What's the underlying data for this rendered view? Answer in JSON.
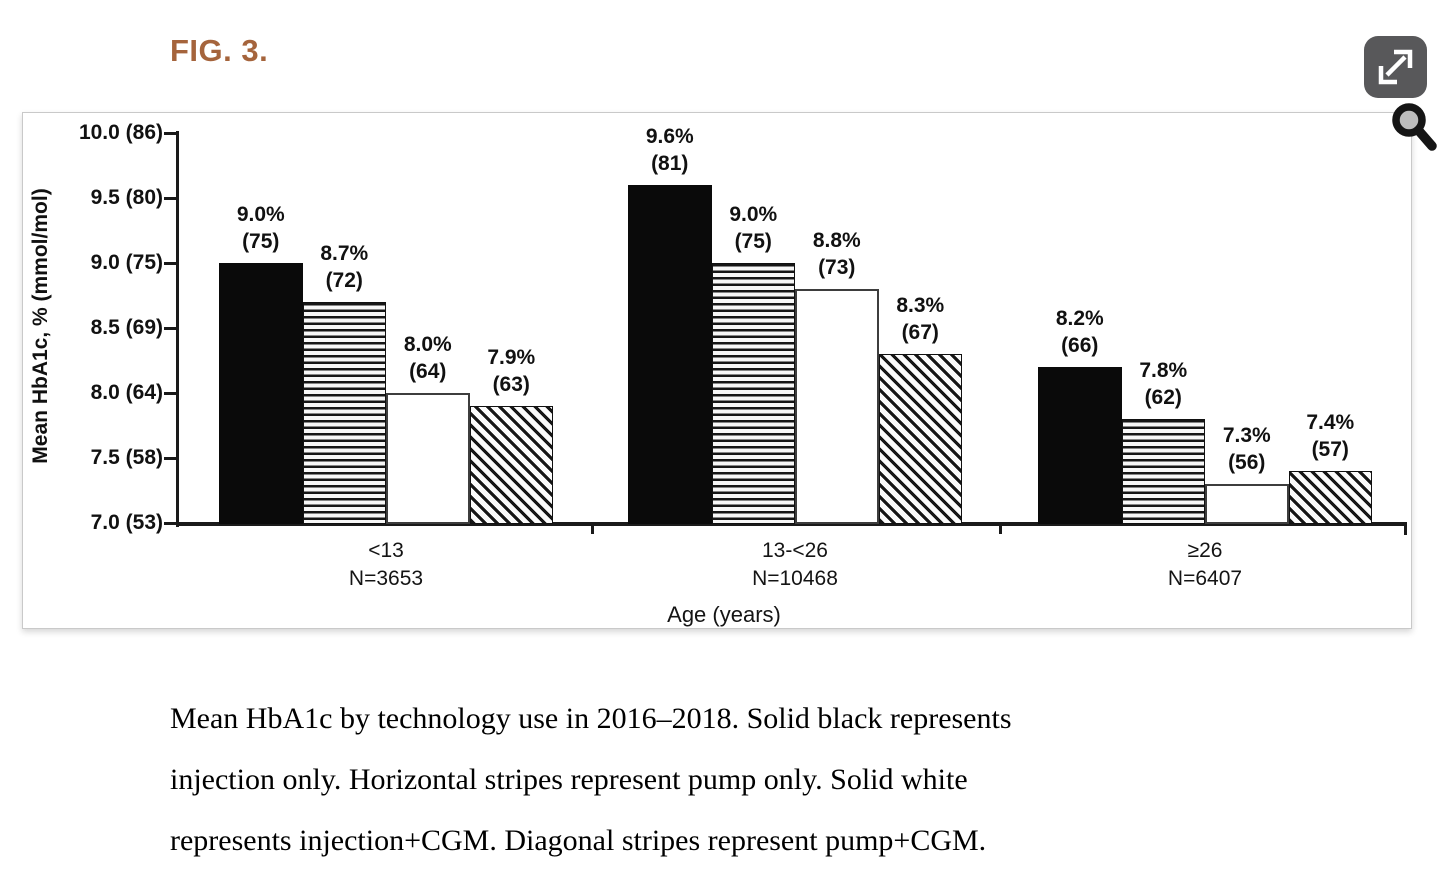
{
  "figure": {
    "label": "FIG. 3."
  },
  "controls": {
    "expand_icon": "expand-diagonal-arrows",
    "zoom_icon": "magnifying-glass"
  },
  "colors": {
    "figure_label": "#a5643c",
    "expand_button_bg": "#58585a",
    "bar_black": "#0a0a0a",
    "axis": "#1a1a1a"
  },
  "chart_data": {
    "type": "bar",
    "title": "",
    "xlabel": "Age (years)",
    "ylabel": "Mean HbA1c, % (mmol/mol)",
    "ylim": [
      7.0,
      10.0
    ],
    "grid": false,
    "legend": "described in caption (fill patterns)",
    "yticks": [
      {
        "value": 10.0,
        "label": "10.0 (86)"
      },
      {
        "value": 9.5,
        "label": "9.5 (80)"
      },
      {
        "value": 9.0,
        "label": "9.0 (75)"
      },
      {
        "value": 8.5,
        "label": "8.5 (69)"
      },
      {
        "value": 8.0,
        "label": "8.0 (64)"
      },
      {
        "value": 7.5,
        "label": "7.5 (58)"
      },
      {
        "value": 7.0,
        "label": "7.0 (53)"
      }
    ],
    "series": [
      {
        "name": "injection only",
        "pattern": "solid-black"
      },
      {
        "name": "pump only",
        "pattern": "horizontal-stripes"
      },
      {
        "name": "injection+CGM",
        "pattern": "solid-white"
      },
      {
        "name": "pump+CGM",
        "pattern": "diagonal-stripes"
      }
    ],
    "groups": [
      {
        "label": "<13",
        "n_label": "N=3653",
        "values": [
          9.0,
          8.7,
          8.0,
          7.9
        ],
        "mmol": [
          75,
          72,
          64,
          63
        ]
      },
      {
        "label": "13-<26",
        "n_label": "N=10468",
        "values": [
          9.6,
          9.0,
          8.8,
          8.3
        ],
        "mmol": [
          81,
          75,
          73,
          67
        ]
      },
      {
        "label": "≥26",
        "n_label": "N=6407",
        "values": [
          8.2,
          7.8,
          7.3,
          7.4
        ],
        "mmol": [
          66,
          62,
          56,
          57
        ]
      }
    ]
  },
  "caption": {
    "lines": [
      "Mean HbA1c by technology use in 2016–2018. Solid black represents",
      "injection only. Horizontal stripes represent pump only. Solid white",
      "represents injection+CGM. Diagonal stripes represent pump+CGM."
    ]
  }
}
